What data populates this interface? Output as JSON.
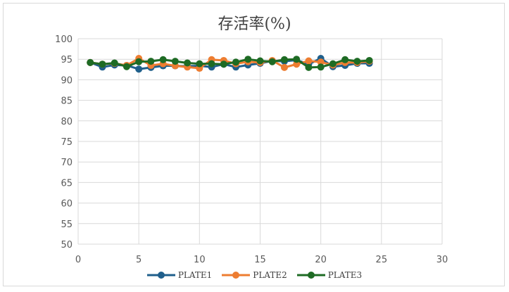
{
  "chart_data": {
    "type": "line",
    "title": "存活率(%)",
    "xlabel": "",
    "ylabel": "",
    "xlim": [
      0,
      30
    ],
    "ylim": [
      50,
      100
    ],
    "x_ticks": [
      0,
      5,
      10,
      15,
      20,
      25,
      30
    ],
    "y_ticks": [
      50,
      55,
      60,
      65,
      70,
      75,
      80,
      85,
      90,
      95,
      100
    ],
    "grid": true,
    "legend_position": "bottom",
    "x": [
      1,
      2,
      3,
      4,
      5,
      6,
      7,
      8,
      9,
      10,
      11,
      12,
      13,
      14,
      15,
      16,
      17,
      18,
      19,
      20,
      21,
      22,
      23,
      24
    ],
    "series": [
      {
        "name": "PLATE1",
        "color": "#1f5f8b",
        "marker": "circle",
        "values": [
          94.2,
          93.1,
          93.6,
          93.5,
          92.6,
          93.0,
          93.4,
          93.4,
          93.3,
          93.4,
          93.1,
          93.8,
          93.1,
          93.6,
          94.0,
          94.6,
          94.5,
          94.8,
          93.8,
          95.2,
          93.2,
          93.5,
          94.0,
          94.0
        ]
      },
      {
        "name": "PLATE2",
        "color": "#ed7d31",
        "marker": "circle",
        "values": [
          94.2,
          93.8,
          94.0,
          93.5,
          95.2,
          93.5,
          93.9,
          93.4,
          93.1,
          92.8,
          94.9,
          94.7,
          93.9,
          94.4,
          94.2,
          94.7,
          93.0,
          93.8,
          94.6,
          94.3,
          93.6,
          94.2,
          94.2,
          94.5
        ]
      },
      {
        "name": "PLATE3",
        "color": "#1e6b24",
        "marker": "circle",
        "values": [
          94.2,
          93.8,
          94.1,
          93.2,
          94.4,
          94.5,
          94.9,
          94.5,
          94.1,
          93.9,
          93.9,
          93.8,
          94.3,
          95.0,
          94.6,
          94.4,
          94.9,
          95.0,
          93.0,
          93.1,
          93.9,
          94.9,
          94.5,
          94.7
        ]
      }
    ]
  }
}
